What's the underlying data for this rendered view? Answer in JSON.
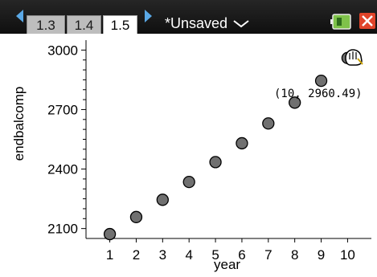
{
  "tabs": [
    "1.3",
    "1.4",
    "1.5"
  ],
  "active_tab": "1.5",
  "doc_title": "*Unsaved",
  "icons": {
    "nav_left": "left-arrow-icon",
    "nav_right": "right-arrow-icon",
    "doc_menu": "chevron-down-icon",
    "battery": "battery-icon",
    "close": "close-icon",
    "hand": "grab-hand-icon"
  },
  "colors": {
    "toolbar": "#1a1a1a",
    "nav_arrow": "#5aa8e6",
    "close": "#e0442a",
    "point_fill": "#707070"
  },
  "point_readout": "(10, 2960.49)",
  "chart_data": {
    "type": "scatter",
    "xlabel": "year",
    "ylabel": "endbalcomp",
    "x": [
      1,
      2,
      3,
      4,
      5,
      6,
      7,
      8,
      9,
      10
    ],
    "y": [
      2072,
      2158,
      2245,
      2335,
      2435,
      2530,
      2630,
      2735,
      2845,
      2960
    ],
    "xlim": [
      0.1,
      10.9
    ],
    "ylim": [
      2050,
      3050
    ],
    "x_ticks": [
      1,
      2,
      3,
      4,
      5,
      6,
      7,
      8,
      9,
      10
    ],
    "y_ticks": [
      2100,
      2400,
      2700,
      3000
    ],
    "grid": false
  }
}
